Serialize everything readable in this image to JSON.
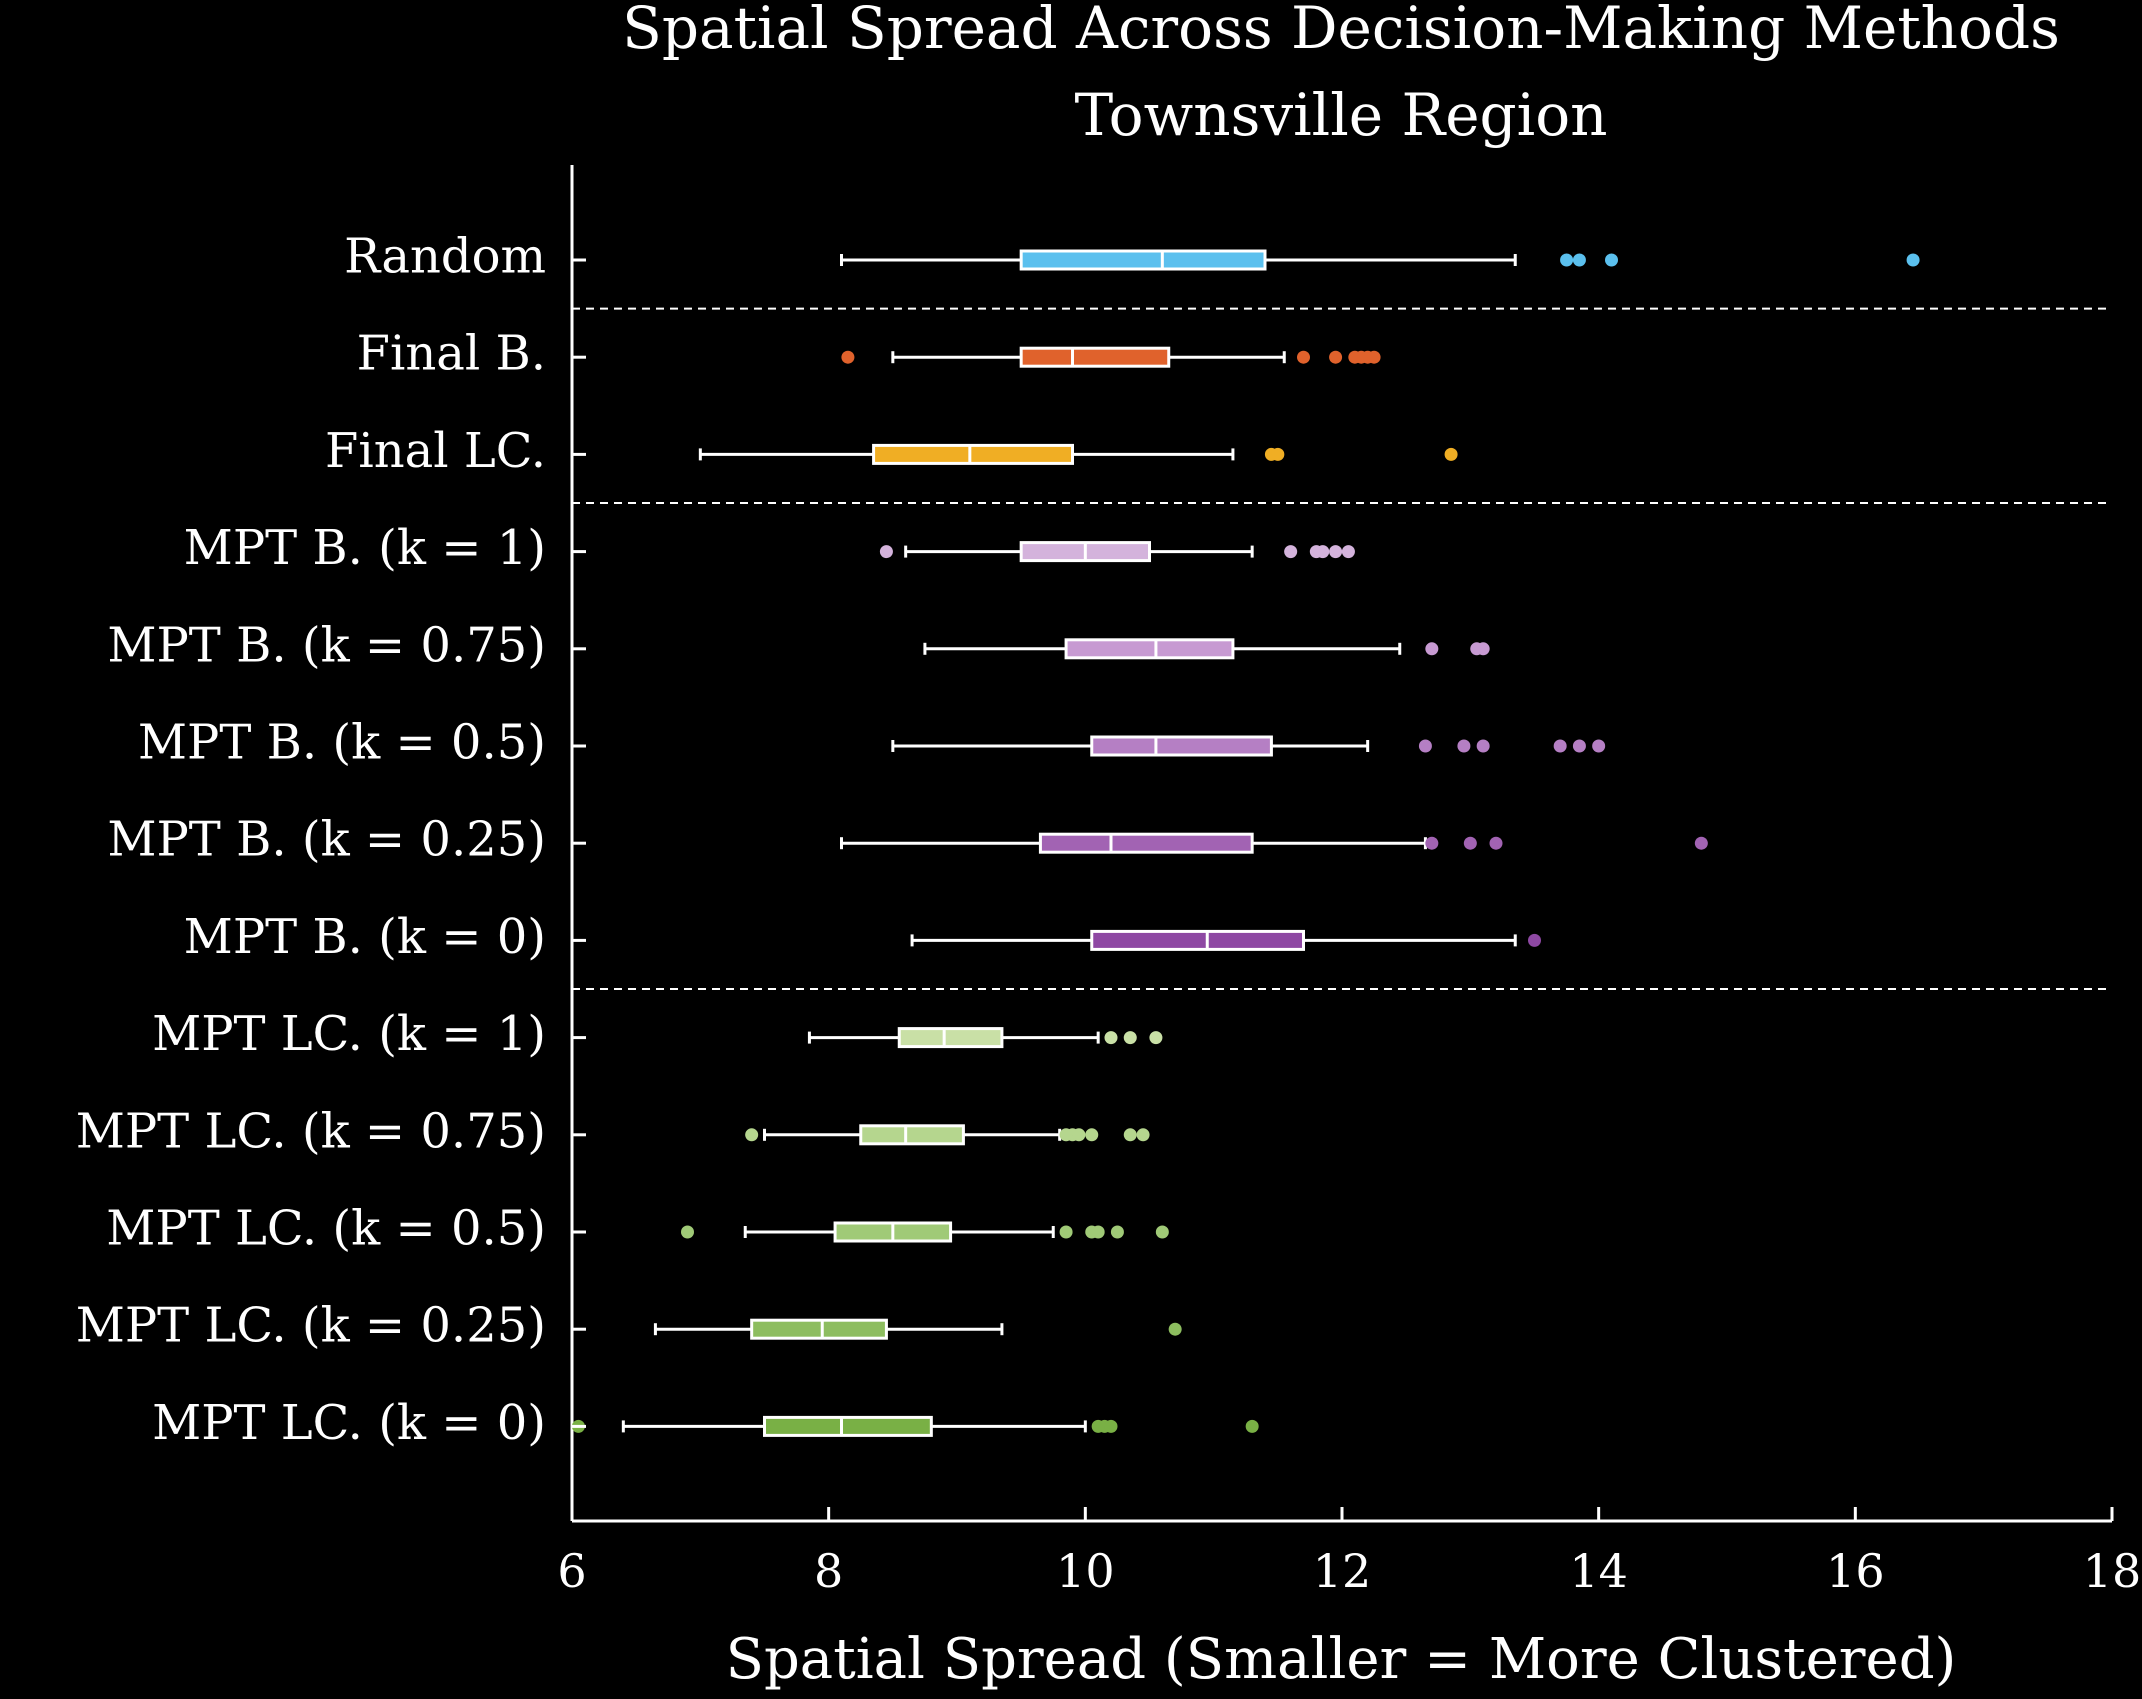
{
  "chart_data": {
    "type": "boxplot",
    "orientation": "horizontal",
    "title": "Spatial Spread Across Decision-Making Methods",
    "subtitle": "Townsville Region",
    "xlabel": "Spatial Spread (Smaller = More Clustered)",
    "ylabel": "",
    "xlim": [
      6,
      18
    ],
    "xticks": [
      "6",
      "8",
      "10",
      "12",
      "14",
      "16",
      "18"
    ],
    "grid": false,
    "group_separators_after": [
      "Random",
      "Final LC.",
      "MPT B. (k = 0)"
    ],
    "series": [
      {
        "name": "Random",
        "color": "#5bc0ee",
        "whisker_low": 8.1,
        "q1": 9.5,
        "median": 10.6,
        "q3": 11.4,
        "whisker_high": 13.35,
        "outliers": [
          13.75,
          13.85,
          14.1,
          16.45
        ]
      },
      {
        "name": "Final B.",
        "color": "#e0622c",
        "whisker_low": 8.5,
        "q1": 9.5,
        "median": 9.9,
        "q3": 10.65,
        "whisker_high": 11.55,
        "outliers": [
          8.15,
          11.7,
          11.95,
          12.1,
          12.15,
          12.2,
          12.25
        ]
      },
      {
        "name": "Final LC.",
        "color": "#f0ae24",
        "whisker_low": 7.0,
        "q1": 8.35,
        "median": 9.1,
        "q3": 9.9,
        "whisker_high": 11.15,
        "outliers": [
          11.45,
          11.5,
          12.85
        ]
      },
      {
        "name": "MPT B. (k = 1)",
        "color": "#d4b3dc",
        "whisker_low": 8.6,
        "q1": 9.5,
        "median": 10.0,
        "q3": 10.5,
        "whisker_high": 11.3,
        "outliers": [
          8.45,
          11.6,
          11.8,
          11.85,
          11.95,
          12.05
        ]
      },
      {
        "name": "MPT B. (k = 0.75)",
        "color": "#c79ad2",
        "whisker_low": 8.75,
        "q1": 9.85,
        "median": 10.55,
        "q3": 11.15,
        "whisker_high": 12.45,
        "outliers": [
          12.7,
          13.05,
          13.1
        ]
      },
      {
        "name": "MPT B. (k = 0.5)",
        "color": "#b57fc4",
        "whisker_low": 8.5,
        "q1": 10.05,
        "median": 10.55,
        "q3": 11.45,
        "whisker_high": 12.2,
        "outliers": [
          12.65,
          12.95,
          13.1,
          13.7,
          13.85,
          14.0
        ]
      },
      {
        "name": "MPT B. (k = 0.25)",
        "color": "#a263b3",
        "whisker_low": 8.1,
        "q1": 9.65,
        "median": 10.2,
        "q3": 11.3,
        "whisker_high": 12.65,
        "outliers": [
          12.7,
          13.0,
          13.2,
          14.8
        ]
      },
      {
        "name": "MPT B. (k = 0)",
        "color": "#8e48a3",
        "whisker_low": 8.65,
        "q1": 10.05,
        "median": 10.95,
        "q3": 11.7,
        "whisker_high": 13.35,
        "outliers": [
          13.5
        ]
      },
      {
        "name": "MPT LC. (k = 1)",
        "color": "#c9e0a6",
        "whisker_low": 7.85,
        "q1": 8.55,
        "median": 8.9,
        "q3": 9.35,
        "whisker_high": 10.1,
        "outliers": [
          10.2,
          10.35,
          10.55
        ]
      },
      {
        "name": "MPT LC. (k = 0.75)",
        "color": "#b5d68e",
        "whisker_low": 7.5,
        "q1": 8.25,
        "median": 8.6,
        "q3": 9.05,
        "whisker_high": 9.8,
        "outliers": [
          7.4,
          9.85,
          9.9,
          9.95,
          10.05,
          10.35,
          10.45
        ]
      },
      {
        "name": "MPT LC. (k = 0.5)",
        "color": "#a0ca77",
        "whisker_low": 7.35,
        "q1": 8.05,
        "median": 8.5,
        "q3": 8.95,
        "whisker_high": 9.75,
        "outliers": [
          6.9,
          9.85,
          10.05,
          10.1,
          10.25,
          10.6
        ]
      },
      {
        "name": "MPT LC. (k = 0.25)",
        "color": "#8dbd5f",
        "whisker_low": 6.65,
        "q1": 7.4,
        "median": 7.95,
        "q3": 8.45,
        "whisker_high": 9.35,
        "outliers": [
          10.7
        ]
      },
      {
        "name": "MPT LC. (k = 0)",
        "color": "#79b045",
        "whisker_low": 6.4,
        "q1": 7.5,
        "median": 8.1,
        "q3": 8.8,
        "whisker_high": 10.0,
        "outliers": [
          6.05,
          10.1,
          10.15,
          10.2,
          11.3
        ]
      }
    ]
  }
}
